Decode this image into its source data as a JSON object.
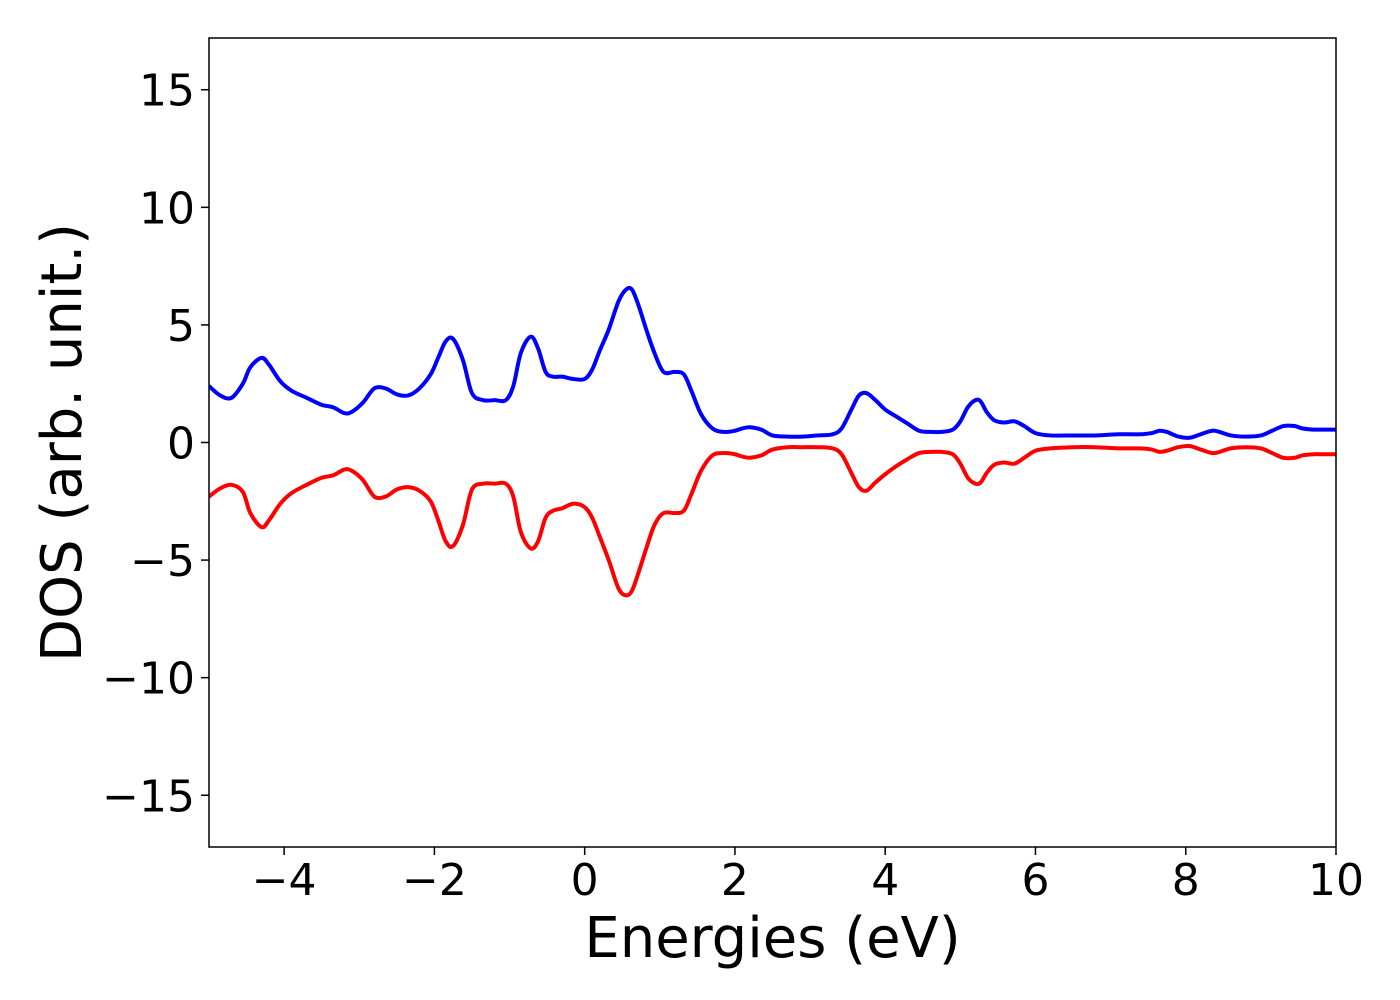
{
  "chart_data": {
    "type": "line",
    "xlabel": "Energies (eV)",
    "ylabel": "DOS (arb. unit.)",
    "xlim": [
      -5,
      10
    ],
    "ylim": [
      -17.2,
      17.2
    ],
    "grid": false,
    "legend": "none",
    "x_ticks": [
      -4,
      -2,
      0,
      2,
      4,
      6,
      8,
      10
    ],
    "x_tick_labels": [
      "−4",
      "−2",
      "0",
      "2",
      "4",
      "6",
      "8",
      "10"
    ],
    "y_ticks": [
      15,
      10,
      5,
      0,
      -5,
      -10,
      -15
    ],
    "y_tick_labels": [
      "15",
      "10",
      "5",
      "0",
      "−5",
      "−10",
      "−15"
    ],
    "series": [
      {
        "color": "#0000ff",
        "x": [
          -5.0,
          -4.85,
          -4.7,
          -4.55,
          -4.45,
          -4.3,
          -4.2,
          -4.05,
          -3.9,
          -3.7,
          -3.5,
          -3.35,
          -3.2,
          -3.1,
          -2.95,
          -2.8,
          -2.65,
          -2.5,
          -2.35,
          -2.2,
          -2.05,
          -1.95,
          -1.85,
          -1.75,
          -1.62,
          -1.5,
          -1.35,
          -1.2,
          -1.05,
          -0.95,
          -0.85,
          -0.72,
          -0.62,
          -0.52,
          -0.42,
          -0.3,
          -0.15,
          0.0,
          0.1,
          0.2,
          0.32,
          0.45,
          0.55,
          0.63,
          0.72,
          0.82,
          0.93,
          1.05,
          1.2,
          1.32,
          1.42,
          1.55,
          1.7,
          1.85,
          2.0,
          2.1,
          2.2,
          2.35,
          2.5,
          2.7,
          2.9,
          3.1,
          3.3,
          3.42,
          3.55,
          3.65,
          3.75,
          3.87,
          4.0,
          4.15,
          4.3,
          4.45,
          4.6,
          4.75,
          4.9,
          5.0,
          5.1,
          5.2,
          5.27,
          5.35,
          5.45,
          5.58,
          5.72,
          5.85,
          6.0,
          6.2,
          6.5,
          6.8,
          7.1,
          7.4,
          7.55,
          7.65,
          7.75,
          7.9,
          8.05,
          8.2,
          8.35,
          8.45,
          8.6,
          8.8,
          9.0,
          9.15,
          9.3,
          9.45,
          9.55,
          9.7,
          9.85,
          10.0
        ],
        "values": [
          2.4,
          2.0,
          1.9,
          2.5,
          3.2,
          3.6,
          3.3,
          2.6,
          2.2,
          1.9,
          1.6,
          1.5,
          1.25,
          1.3,
          1.7,
          2.3,
          2.3,
          2.05,
          2.0,
          2.3,
          2.9,
          3.6,
          4.3,
          4.4,
          3.5,
          2.1,
          1.8,
          1.8,
          1.8,
          2.4,
          3.8,
          4.5,
          4.0,
          3.0,
          2.8,
          2.8,
          2.7,
          2.7,
          3.1,
          3.9,
          4.8,
          6.0,
          6.5,
          6.5,
          5.8,
          4.8,
          3.8,
          3.0,
          3.0,
          2.9,
          2.2,
          1.2,
          0.6,
          0.45,
          0.5,
          0.6,
          0.65,
          0.55,
          0.3,
          0.25,
          0.25,
          0.3,
          0.35,
          0.6,
          1.4,
          2.0,
          2.1,
          1.8,
          1.4,
          1.1,
          0.8,
          0.5,
          0.45,
          0.45,
          0.55,
          0.9,
          1.5,
          1.8,
          1.75,
          1.3,
          0.95,
          0.85,
          0.9,
          0.7,
          0.4,
          0.3,
          0.3,
          0.3,
          0.35,
          0.35,
          0.4,
          0.5,
          0.45,
          0.25,
          0.2,
          0.35,
          0.5,
          0.45,
          0.3,
          0.25,
          0.3,
          0.5,
          0.7,
          0.7,
          0.6,
          0.55,
          0.55,
          0.55
        ]
      },
      {
        "color": "#ff0000",
        "x": [
          -5.0,
          -4.85,
          -4.7,
          -4.55,
          -4.45,
          -4.3,
          -4.2,
          -4.05,
          -3.9,
          -3.7,
          -3.5,
          -3.35,
          -3.2,
          -3.1,
          -2.95,
          -2.8,
          -2.65,
          -2.5,
          -2.35,
          -2.2,
          -2.05,
          -1.95,
          -1.85,
          -1.75,
          -1.62,
          -1.5,
          -1.35,
          -1.2,
          -1.05,
          -0.95,
          -0.85,
          -0.72,
          -0.62,
          -0.52,
          -0.42,
          -0.3,
          -0.15,
          0.0,
          0.1,
          0.2,
          0.32,
          0.45,
          0.55,
          0.63,
          0.72,
          0.82,
          0.93,
          1.05,
          1.2,
          1.32,
          1.42,
          1.55,
          1.7,
          1.85,
          2.0,
          2.1,
          2.2,
          2.35,
          2.5,
          2.7,
          2.9,
          3.1,
          3.3,
          3.42,
          3.55,
          3.65,
          3.75,
          3.87,
          4.0,
          4.15,
          4.3,
          4.45,
          4.6,
          4.75,
          4.9,
          5.0,
          5.1,
          5.2,
          5.27,
          5.35,
          5.45,
          5.58,
          5.72,
          5.85,
          6.0,
          6.2,
          6.5,
          6.8,
          7.1,
          7.4,
          7.55,
          7.65,
          7.75,
          7.9,
          8.05,
          8.2,
          8.35,
          8.45,
          8.6,
          8.8,
          9.0,
          9.15,
          9.3,
          9.45,
          9.55,
          9.7,
          9.85,
          10.0
        ],
        "values": [
          -2.3,
          -1.95,
          -1.8,
          -2.1,
          -3.0,
          -3.6,
          -3.3,
          -2.6,
          -2.15,
          -1.8,
          -1.5,
          -1.4,
          -1.15,
          -1.2,
          -1.6,
          -2.3,
          -2.3,
          -2.0,
          -1.9,
          -2.05,
          -2.5,
          -3.3,
          -4.2,
          -4.4,
          -3.5,
          -2.0,
          -1.75,
          -1.75,
          -1.75,
          -2.3,
          -3.8,
          -4.5,
          -4.2,
          -3.2,
          -2.9,
          -2.8,
          -2.6,
          -2.75,
          -3.2,
          -4.0,
          -5.0,
          -6.2,
          -6.5,
          -6.3,
          -5.5,
          -4.5,
          -3.5,
          -3.0,
          -3.0,
          -2.9,
          -2.2,
          -1.2,
          -0.55,
          -0.45,
          -0.5,
          -0.6,
          -0.65,
          -0.55,
          -0.3,
          -0.2,
          -0.2,
          -0.2,
          -0.25,
          -0.5,
          -1.3,
          -1.9,
          -2.05,
          -1.7,
          -1.35,
          -1.0,
          -0.7,
          -0.45,
          -0.4,
          -0.4,
          -0.5,
          -0.9,
          -1.5,
          -1.75,
          -1.7,
          -1.3,
          -0.95,
          -0.85,
          -0.9,
          -0.65,
          -0.35,
          -0.25,
          -0.2,
          -0.2,
          -0.25,
          -0.25,
          -0.3,
          -0.4,
          -0.35,
          -0.2,
          -0.15,
          -0.3,
          -0.45,
          -0.4,
          -0.25,
          -0.2,
          -0.25,
          -0.45,
          -0.65,
          -0.65,
          -0.55,
          -0.5,
          -0.5,
          -0.5
        ]
      }
    ]
  }
}
